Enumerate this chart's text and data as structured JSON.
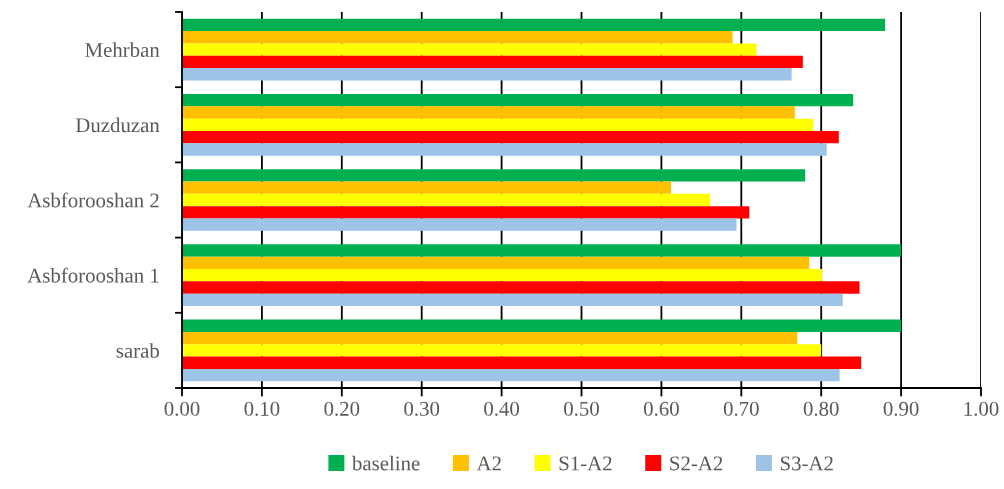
{
  "chart_data": {
    "type": "bar",
    "orientation": "horizontal",
    "categories": [
      "Mehrban",
      "Duzduzan",
      "Asbforooshan 2",
      "Asbforooshan 1",
      "sarab"
    ],
    "series": [
      {
        "name": "baseline",
        "color": "#00b050",
        "values": [
          0.88,
          0.84,
          0.78,
          0.9,
          0.9
        ]
      },
      {
        "name": "A2",
        "color": "#ffc000",
        "values": [
          0.689,
          0.767,
          0.612,
          0.785,
          0.77
        ]
      },
      {
        "name": "S1-A2",
        "color": "#ffff00",
        "values": [
          0.719,
          0.79,
          0.661,
          0.801,
          0.8
        ]
      },
      {
        "name": "S2-A2",
        "color": "#ff0000",
        "values": [
          0.777,
          0.822,
          0.71,
          0.848,
          0.85
        ]
      },
      {
        "name": "S3-A2",
        "color": "#9dc3e6",
        "values": [
          0.763,
          0.807,
          0.694,
          0.827,
          0.823
        ]
      }
    ],
    "xlim": [
      0,
      1
    ],
    "xticks": [
      {
        "value": 0,
        "label": "0.00"
      },
      {
        "value": 0.1,
        "label": "0.10"
      },
      {
        "value": 0.2,
        "label": "0.20"
      },
      {
        "value": 0.3,
        "label": "0.30"
      },
      {
        "value": 0.4,
        "label": "0.40"
      },
      {
        "value": 0.5,
        "label": "0.50"
      },
      {
        "value": 0.6,
        "label": "0.60"
      },
      {
        "value": 0.7,
        "label": "0.70"
      },
      {
        "value": 0.8,
        "label": "0.80"
      },
      {
        "value": 0.9,
        "label": "0.90"
      },
      {
        "value": 1,
        "label": "1.00"
      }
    ],
    "grid": "x",
    "legend": "bottom"
  }
}
